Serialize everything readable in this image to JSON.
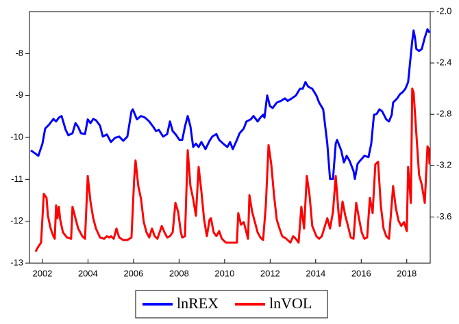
{
  "chart_data": {
    "type": "line",
    "xlim": [
      2001.43,
      2019.03
    ],
    "xticks": [
      2002,
      2004,
      2006,
      2008,
      2010,
      2012,
      2014,
      2016,
      2018
    ],
    "ylim": [
      -13,
      -7
    ],
    "yticks": [
      -13,
      -12,
      -11,
      -10,
      -9,
      -8
    ],
    "y2lim": [
      -3.96,
      -2.0
    ],
    "y2ticks": [
      -3.6,
      -3.2,
      -2.8,
      -2.4,
      {
        "value": -2.0,
        "label": "-2.0"
      }
    ],
    "legend": "bottom",
    "series": [
      {
        "name": "lnREX",
        "color": "#0000ff",
        "axis": "y",
        "x": [
          2001.49,
          2001.7,
          2001.82,
          2002.0,
          2002.12,
          2002.3,
          2002.48,
          2002.6,
          2002.72,
          2002.84,
          2003.02,
          2003.14,
          2003.32,
          2003.45,
          2003.57,
          2003.69,
          2003.87,
          2003.99,
          2004.11,
          2004.23,
          2004.35,
          2004.53,
          2004.65,
          2004.83,
          2005.01,
          2005.19,
          2005.37,
          2005.55,
          2005.73,
          2005.91,
          2005.97,
          2006.15,
          2006.33,
          2006.51,
          2006.69,
          2006.87,
          2006.99,
          2007.11,
          2007.3,
          2007.48,
          2007.6,
          2007.72,
          2007.84,
          2008.02,
          2008.14,
          2008.26,
          2008.38,
          2008.5,
          2008.62,
          2008.74,
          2008.86,
          2008.98,
          2009.16,
          2009.34,
          2009.46,
          2009.64,
          2009.76,
          2009.94,
          2010.12,
          2010.24,
          2010.36,
          2010.54,
          2010.66,
          2010.84,
          2010.96,
          2011.15,
          2011.27,
          2011.45,
          2011.57,
          2011.69,
          2011.75,
          2011.87,
          2011.99,
          2012.11,
          2012.29,
          2012.47,
          2012.65,
          2012.77,
          2012.95,
          2013.13,
          2013.31,
          2013.43,
          2013.55,
          2013.67,
          2013.85,
          2014.03,
          2014.15,
          2014.33,
          2014.51,
          2014.63,
          2014.76,
          2014.88,
          2014.94,
          2015.12,
          2015.24,
          2015.36,
          2015.48,
          2015.66,
          2015.72,
          2015.84,
          2015.96,
          2016.14,
          2016.32,
          2016.44,
          2016.56,
          2016.68,
          2016.8,
          2016.92,
          2017.1,
          2017.22,
          2017.34,
          2017.4,
          2017.58,
          2017.7,
          2017.82,
          2017.94,
          2018.06,
          2018.12,
          2018.18,
          2018.24,
          2018.3,
          2018.36,
          2018.42,
          2018.54,
          2018.66,
          2018.79,
          2018.91,
          2019.0
        ],
        "values": [
          -10.31,
          -10.39,
          -10.44,
          -10.15,
          -9.79,
          -9.69,
          -9.56,
          -9.62,
          -9.53,
          -9.49,
          -9.82,
          -9.95,
          -9.9,
          -9.66,
          -9.75,
          -9.9,
          -9.92,
          -9.57,
          -9.66,
          -9.56,
          -9.59,
          -9.72,
          -9.98,
          -9.93,
          -10.11,
          -10.01,
          -9.98,
          -10.08,
          -9.98,
          -9.38,
          -9.33,
          -9.57,
          -9.49,
          -9.53,
          -9.62,
          -9.75,
          -9.85,
          -9.82,
          -9.98,
          -9.92,
          -9.62,
          -9.85,
          -9.92,
          -10.06,
          -10.06,
          -9.74,
          -9.49,
          -9.74,
          -10.23,
          -10.15,
          -10.23,
          -10.11,
          -10.28,
          -10.08,
          -9.98,
          -9.92,
          -10.06,
          -10.15,
          -10.23,
          -10.11,
          -10.28,
          -10.06,
          -9.9,
          -9.79,
          -9.62,
          -9.57,
          -9.49,
          -9.62,
          -9.53,
          -9.46,
          -9.53,
          -9.0,
          -9.25,
          -9.3,
          -9.17,
          -9.13,
          -9.07,
          -9.13,
          -9.07,
          -9.0,
          -8.84,
          -8.84,
          -8.68,
          -8.79,
          -8.84,
          -9.0,
          -9.17,
          -9.33,
          -10.15,
          -10.99,
          -10.99,
          -10.15,
          -10.06,
          -10.31,
          -10.6,
          -10.44,
          -10.55,
          -10.8,
          -10.99,
          -10.63,
          -10.55,
          -10.44,
          -10.47,
          -10.15,
          -9.46,
          -9.44,
          -9.33,
          -9.38,
          -9.57,
          -9.62,
          -9.46,
          -9.17,
          -9.07,
          -8.97,
          -8.92,
          -8.84,
          -8.68,
          -8.35,
          -8.02,
          -7.7,
          -7.45,
          -7.62,
          -7.89,
          -7.94,
          -7.89,
          -7.62,
          -7.42,
          -7.5
        ]
      },
      {
        "name": "lnVOL",
        "color": "#ff0000",
        "axis": "y2",
        "x": [
          2001.7,
          2001.82,
          2001.94,
          2002.06,
          2002.18,
          2002.24,
          2002.36,
          2002.48,
          2002.54,
          2002.6,
          2002.66,
          2002.72,
          2002.78,
          2002.9,
          2003.08,
          2003.26,
          2003.32,
          2003.45,
          2003.57,
          2003.75,
          2003.87,
          2003.99,
          2004.11,
          2004.23,
          2004.35,
          2004.53,
          2004.71,
          2004.83,
          2004.95,
          2005.01,
          2005.13,
          2005.25,
          2005.37,
          2005.55,
          2005.73,
          2005.91,
          2006.03,
          2006.09,
          2006.21,
          2006.33,
          2006.45,
          2006.57,
          2006.69,
          2006.81,
          2006.93,
          2007.05,
          2007.24,
          2007.36,
          2007.48,
          2007.6,
          2007.72,
          2007.84,
          2007.96,
          2008.08,
          2008.14,
          2008.26,
          2008.38,
          2008.5,
          2008.62,
          2008.74,
          2008.86,
          2008.98,
          2009.1,
          2009.22,
          2009.34,
          2009.4,
          2009.52,
          2009.64,
          2009.76,
          2009.88,
          2010.06,
          2010.3,
          2010.54,
          2010.6,
          2010.72,
          2010.84,
          2011.03,
          2011.09,
          2011.21,
          2011.33,
          2011.45,
          2011.57,
          2011.69,
          2011.81,
          2011.93,
          2012.05,
          2012.17,
          2012.29,
          2012.41,
          2012.53,
          2012.71,
          2012.89,
          2013.01,
          2013.13,
          2013.25,
          2013.37,
          2013.49,
          2013.61,
          2013.73,
          2013.85,
          2014.03,
          2014.15,
          2014.27,
          2014.51,
          2014.63,
          2014.76,
          2014.88,
          2015.0,
          2015.06,
          2015.18,
          2015.3,
          2015.42,
          2015.54,
          2015.66,
          2015.78,
          2015.9,
          2016.02,
          2016.14,
          2016.26,
          2016.38,
          2016.5,
          2016.62,
          2016.74,
          2016.86,
          2016.98,
          2017.1,
          2017.22,
          2017.4,
          2017.52,
          2017.64,
          2017.76,
          2017.88,
          2018.0,
          2018.06,
          2018.18,
          2018.24,
          2018.3,
          2018.42,
          2018.54,
          2018.66,
          2018.79,
          2018.91,
          2018.97,
          2019.0
        ],
        "values": [
          -3.87,
          -3.83,
          -3.8,
          -3.42,
          -3.45,
          -3.59,
          -3.69,
          -3.75,
          -3.77,
          -3.51,
          -3.61,
          -3.52,
          -3.62,
          -3.72,
          -3.76,
          -3.77,
          -3.52,
          -3.61,
          -3.69,
          -3.75,
          -3.77,
          -3.28,
          -3.48,
          -3.61,
          -3.69,
          -3.76,
          -3.77,
          -3.75,
          -3.76,
          -3.75,
          -3.77,
          -3.69,
          -3.76,
          -3.78,
          -3.78,
          -3.76,
          -3.3,
          -3.16,
          -3.36,
          -3.46,
          -3.64,
          -3.72,
          -3.76,
          -3.69,
          -3.75,
          -3.77,
          -3.67,
          -3.72,
          -3.76,
          -3.75,
          -3.72,
          -3.49,
          -3.56,
          -3.72,
          -3.76,
          -3.75,
          -3.08,
          -3.36,
          -3.46,
          -3.59,
          -3.21,
          -3.4,
          -3.62,
          -3.75,
          -3.62,
          -3.61,
          -3.72,
          -3.75,
          -3.71,
          -3.77,
          -3.8,
          -3.8,
          -3.8,
          -3.57,
          -3.66,
          -3.64,
          -3.77,
          -3.43,
          -3.56,
          -3.64,
          -3.72,
          -3.76,
          -3.78,
          -3.51,
          -3.04,
          -3.19,
          -3.43,
          -3.62,
          -3.69,
          -3.75,
          -3.77,
          -3.8,
          -3.75,
          -3.77,
          -3.8,
          -3.52,
          -3.69,
          -3.28,
          -3.43,
          -3.67,
          -3.75,
          -3.77,
          -3.75,
          -3.61,
          -3.69,
          -3.56,
          -3.28,
          -3.56,
          -3.67,
          -3.48,
          -3.59,
          -3.67,
          -3.76,
          -3.77,
          -3.49,
          -3.61,
          -3.72,
          -3.77,
          -3.76,
          -3.45,
          -3.57,
          -3.19,
          -3.17,
          -3.51,
          -3.69,
          -3.75,
          -3.77,
          -3.36,
          -3.53,
          -3.63,
          -3.67,
          -3.64,
          -3.71,
          -3.21,
          -3.49,
          -2.6,
          -2.63,
          -2.95,
          -3.27,
          -3.35,
          -3.49,
          -3.05,
          -3.07,
          -3.19
        ]
      }
    ]
  }
}
